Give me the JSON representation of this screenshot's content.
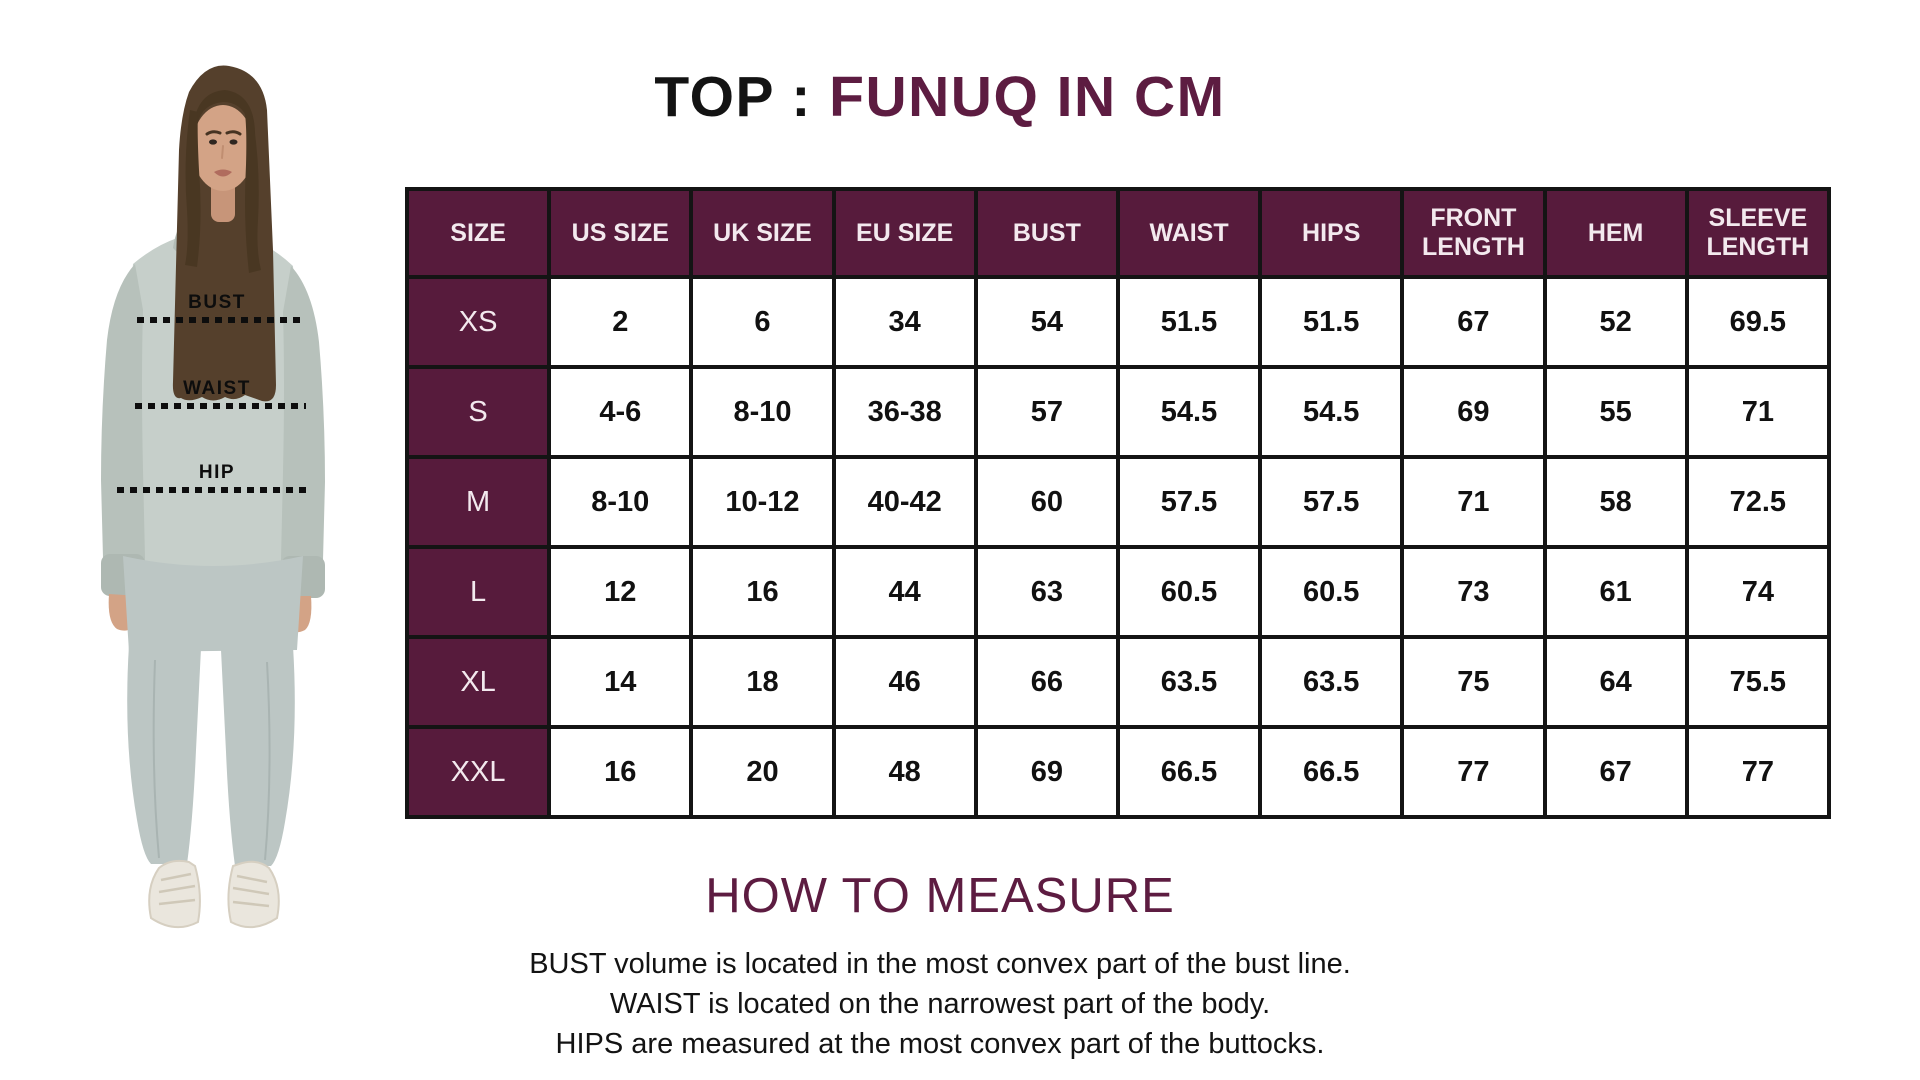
{
  "title": {
    "prefix": "TOP :",
    "highlight": "FUNUQ IN CM"
  },
  "colors": {
    "accent": "#5d1c41",
    "header_bg": "#571b3c",
    "table_border": "#141414",
    "hoodie": "#c6cfca",
    "pants": "#bcc6c4"
  },
  "model": {
    "measure_labels": [
      "BUST",
      "WAIST",
      "HIP"
    ]
  },
  "chart_data": {
    "type": "table",
    "title": "TOP : FUNUQ IN CM",
    "columns": [
      "SIZE",
      "US SIZE",
      "UK SIZE",
      "EU SIZE",
      "BUST",
      "WAIST",
      "HIPS",
      "FRONT LENGTH",
      "HEM",
      "SLEEVE LENGTH"
    ],
    "rows": [
      [
        "XS",
        "2",
        "6",
        "34",
        "54",
        "51.5",
        "51.5",
        "67",
        "52",
        "69.5"
      ],
      [
        "S",
        "4-6",
        "8-10",
        "36-38",
        "57",
        "54.5",
        "54.5",
        "69",
        "55",
        "71"
      ],
      [
        "M",
        "8-10",
        "10-12",
        "40-42",
        "60",
        "57.5",
        "57.5",
        "71",
        "58",
        "72.5"
      ],
      [
        "L",
        "12",
        "16",
        "44",
        "63",
        "60.5",
        "60.5",
        "73",
        "61",
        "74"
      ],
      [
        "XL",
        "14",
        "18",
        "46",
        "66",
        "63.5",
        "63.5",
        "75",
        "64",
        "75.5"
      ],
      [
        "XXL",
        "16",
        "20",
        "48",
        "69",
        "66.5",
        "66.5",
        "77",
        "67",
        "77"
      ]
    ]
  },
  "how_to_measure": {
    "heading": "HOW TO MEASURE",
    "lines": [
      "BUST volume is located in the most convex part of the bust line.",
      "WAIST is located on the narrowest part of the body.",
      "HIPS are measured at the most convex part of the buttocks."
    ]
  }
}
